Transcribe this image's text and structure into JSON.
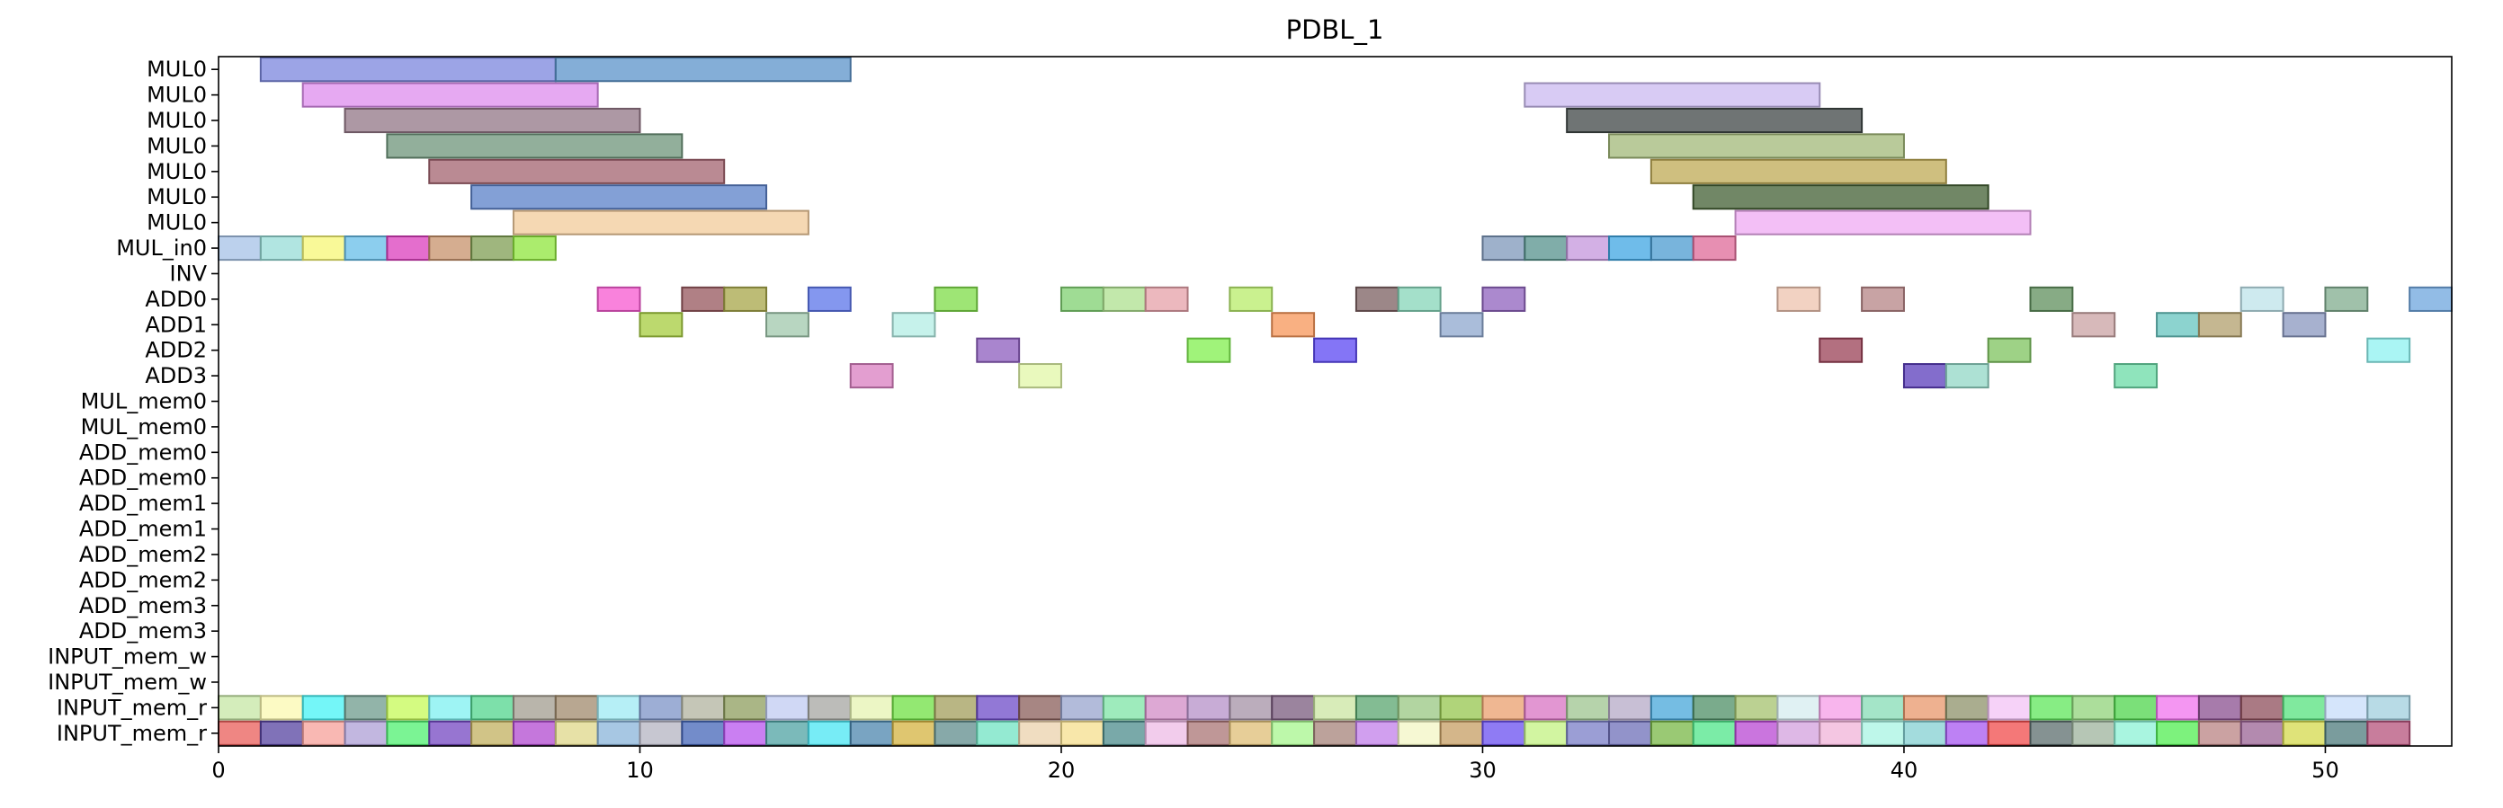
{
  "chart_data": {
    "type": "gantt",
    "title": "PDBL_1",
    "xlabel": "",
    "ylabel": "",
    "xlim": [
      0,
      53
    ],
    "xticks": [
      0,
      10,
      20,
      30,
      40,
      50
    ],
    "grid": false,
    "rows": [
      "MUL0",
      "MUL0",
      "MUL0",
      "MUL0",
      "MUL0",
      "MUL0",
      "MUL0",
      "MUL_in0",
      "INV",
      "ADD0",
      "ADD1",
      "ADD2",
      "ADD3",
      "MUL_mem0",
      "MUL_mem0",
      "ADD_mem0",
      "ADD_mem0",
      "ADD_mem1",
      "ADD_mem1",
      "ADD_mem2",
      "ADD_mem2",
      "ADD_mem3",
      "ADD_mem3",
      "INPUT_mem_w",
      "INPUT_mem_w",
      "INPUT_mem_r",
      "INPUT_mem_r"
    ],
    "tasks": [
      {
        "row": 0,
        "start": 1,
        "end": 8,
        "color": "#7b86dd"
      },
      {
        "row": 0,
        "start": 8,
        "end": 15,
        "color": "#5b93c9"
      },
      {
        "row": 1,
        "start": 2,
        "end": 9,
        "color": "#dd8cee"
      },
      {
        "row": 1,
        "start": 31,
        "end": 38,
        "color": "#cbbaf0"
      },
      {
        "row": 2,
        "start": 3,
        "end": 10,
        "color": "#927585"
      },
      {
        "row": 2,
        "start": 32,
        "end": 39,
        "color": "#3f4645"
      },
      {
        "row": 3,
        "start": 4,
        "end": 11,
        "color": "#6d9479"
      },
      {
        "row": 3,
        "start": 33,
        "end": 40,
        "color": "#a2b878"
      },
      {
        "row": 4,
        "start": 5,
        "end": 12,
        "color": "#a3636f"
      },
      {
        "row": 4,
        "start": 34,
        "end": 41,
        "color": "#bfa954"
      },
      {
        "row": 5,
        "start": 6,
        "end": 13,
        "color": "#5a80c8"
      },
      {
        "row": 5,
        "start": 35,
        "end": 42,
        "color": "#425f33"
      },
      {
        "row": 6,
        "start": 7,
        "end": 14,
        "color": "#f1cb9a"
      },
      {
        "row": 6,
        "start": 36,
        "end": 43,
        "color": "#efaaf3"
      },
      {
        "row": 7,
        "start": 0,
        "end": 1,
        "color": "#a5c2e7"
      },
      {
        "row": 7,
        "start": 1,
        "end": 2,
        "color": "#97dcd7"
      },
      {
        "row": 7,
        "start": 2,
        "end": 3,
        "color": "#f7f775"
      },
      {
        "row": 7,
        "start": 3,
        "end": 4,
        "color": "#66bde8"
      },
      {
        "row": 7,
        "start": 4,
        "end": 5,
        "color": "#db3dbc"
      },
      {
        "row": 7,
        "start": 5,
        "end": 6,
        "color": "#c7916b"
      },
      {
        "row": 7,
        "start": 6,
        "end": 7,
        "color": "#7f9e53"
      },
      {
        "row": 7,
        "start": 7,
        "end": 8,
        "color": "#8fe53c"
      },
      {
        "row": 7,
        "start": 30,
        "end": 31,
        "color": "#7d97b9"
      },
      {
        "row": 7,
        "start": 31,
        "end": 32,
        "color": "#56928c"
      },
      {
        "row": 7,
        "start": 32,
        "end": 33,
        "color": "#c496dc"
      },
      {
        "row": 7,
        "start": 33,
        "end": 34,
        "color": "#3fa6e3"
      },
      {
        "row": 7,
        "start": 34,
        "end": 35,
        "color": "#4b9bd0"
      },
      {
        "row": 7,
        "start": 35,
        "end": 36,
        "color": "#df6a98"
      },
      {
        "row": 9,
        "start": 9,
        "end": 10,
        "color": "#f758d0"
      },
      {
        "row": 9,
        "start": 11,
        "end": 12,
        "color": "#95565c"
      },
      {
        "row": 9,
        "start": 12,
        "end": 13,
        "color": "#a7a648"
      },
      {
        "row": 9,
        "start": 14,
        "end": 15,
        "color": "#5b74ea"
      },
      {
        "row": 9,
        "start": 17,
        "end": 18,
        "color": "#7ddc47"
      },
      {
        "row": 9,
        "start": 20,
        "end": 21,
        "color": "#7fd070"
      },
      {
        "row": 9,
        "start": 21,
        "end": 22,
        "color": "#ade08f"
      },
      {
        "row": 9,
        "start": 22,
        "end": 23,
        "color": "#e5a0a8"
      },
      {
        "row": 9,
        "start": 24,
        "end": 25,
        "color": "#b8ec6a"
      },
      {
        "row": 9,
        "start": 27,
        "end": 28,
        "color": "#7b5f60"
      },
      {
        "row": 9,
        "start": 28,
        "end": 29,
        "color": "#85d5b8"
      },
      {
        "row": 9,
        "start": 30,
        "end": 31,
        "color": "#8f61bd"
      },
      {
        "row": 9,
        "start": 37,
        "end": 38,
        "color": "#edc3ae"
      },
      {
        "row": 9,
        "start": 39,
        "end": 40,
        "color": "#b68485"
      },
      {
        "row": 9,
        "start": 43,
        "end": 44,
        "color": "#5f8f5c"
      },
      {
        "row": 9,
        "start": 48,
        "end": 49,
        "color": "#bde3ea"
      },
      {
        "row": 9,
        "start": 50,
        "end": 51,
        "color": "#80ac8e"
      },
      {
        "row": 9,
        "start": 52,
        "end": 53,
        "color": "#6ea5de"
      },
      {
        "row": 10,
        "start": 10,
        "end": 11,
        "color": "#a5cc3e"
      },
      {
        "row": 10,
        "start": 13,
        "end": 14,
        "color": "#a0c8ac"
      },
      {
        "row": 10,
        "start": 16,
        "end": 17,
        "color": "#b3ede4"
      },
      {
        "row": 10,
        "start": 25,
        "end": 26,
        "color": "#f79558"
      },
      {
        "row": 10,
        "start": 29,
        "end": 30,
        "color": "#8ea7cd"
      },
      {
        "row": 10,
        "start": 44,
        "end": 45,
        "color": "#c9a2a3"
      },
      {
        "row": 10,
        "start": 46,
        "end": 47,
        "color": "#66c4bf"
      },
      {
        "row": 10,
        "start": 47,
        "end": 48,
        "color": "#b19f6c"
      },
      {
        "row": 10,
        "start": 49,
        "end": 50,
        "color": "#8997bf"
      },
      {
        "row": 11,
        "start": 18,
        "end": 19,
        "color": "#8c5cbd"
      },
      {
        "row": 11,
        "start": 23,
        "end": 24,
        "color": "#80ef4e"
      },
      {
        "row": 11,
        "start": 26,
        "end": 27,
        "color": "#5b47f3"
      },
      {
        "row": 11,
        "start": 38,
        "end": 39,
        "color": "#9a4055"
      },
      {
        "row": 11,
        "start": 42,
        "end": 43,
        "color": "#7dc35e"
      },
      {
        "row": 11,
        "start": 51,
        "end": 52,
        "color": "#8df2f0"
      },
      {
        "row": 12,
        "start": 15,
        "end": 16,
        "color": "#d97ec0"
      },
      {
        "row": 12,
        "start": 19,
        "end": 20,
        "color": "#e1f7a7"
      },
      {
        "row": 12,
        "start": 40,
        "end": 41,
        "color": "#5a3cbb"
      },
      {
        "row": 12,
        "start": 41,
        "end": 42,
        "color": "#91d7c6"
      },
      {
        "row": 12,
        "start": 45,
        "end": 46,
        "color": "#6adba6"
      },
      {
        "row": 25,
        "start": 0,
        "end": 1,
        "color": "#c5e7a4"
      },
      {
        "row": 25,
        "start": 1,
        "end": 2,
        "color": "#fbf8b0"
      },
      {
        "row": 25,
        "start": 2,
        "end": 3,
        "color": "#45f3f5"
      },
      {
        "row": 25,
        "start": 3,
        "end": 4,
        "color": "#6e9b8c"
      },
      {
        "row": 25,
        "start": 4,
        "end": 5,
        "color": "#c5fa57"
      },
      {
        "row": 25,
        "start": 5,
        "end": 6,
        "color": "#7df0f0"
      },
      {
        "row": 25,
        "start": 6,
        "end": 7,
        "color": "#52d58d"
      },
      {
        "row": 25,
        "start": 7,
        "end": 8,
        "color": "#a29c8f"
      },
      {
        "row": 25,
        "start": 8,
        "end": 9,
        "color": "#a08a6c"
      },
      {
        "row": 25,
        "start": 9,
        "end": 10,
        "color": "#9ee9f3"
      },
      {
        "row": 25,
        "start": 10,
        "end": 11,
        "color": "#7c93c7"
      },
      {
        "row": 25,
        "start": 11,
        "end": 12,
        "color": "#b1b39f"
      },
      {
        "row": 25,
        "start": 12,
        "end": 13,
        "color": "#8e9d5d"
      },
      {
        "row": 25,
        "start": 13,
        "end": 14,
        "color": "#c0cbf1"
      },
      {
        "row": 25,
        "start": 14,
        "end": 15,
        "color": "#a5a6a1"
      },
      {
        "row": 25,
        "start": 15,
        "end": 16,
        "color": "#e5f3b2"
      },
      {
        "row": 25,
        "start": 16,
        "end": 17,
        "color": "#6fe043"
      },
      {
        "row": 25,
        "start": 17,
        "end": 18,
        "color": "#a19d5b"
      },
      {
        "row": 25,
        "start": 18,
        "end": 19,
        "color": "#6d4bc8"
      },
      {
        "row": 25,
        "start": 19,
        "end": 20,
        "color": "#895e5a"
      },
      {
        "row": 25,
        "start": 20,
        "end": 21,
        "color": "#98a4ce"
      },
      {
        "row": 25,
        "start": 21,
        "end": 22,
        "color": "#7ee4a6"
      },
      {
        "row": 25,
        "start": 22,
        "end": 23,
        "color": "#d18bc5"
      },
      {
        "row": 25,
        "start": 23,
        "end": 24,
        "color": "#b590c8"
      },
      {
        "row": 25,
        "start": 24,
        "end": 25,
        "color": "#a491a5"
      },
      {
        "row": 25,
        "start": 25,
        "end": 26,
        "color": "#7a5b7d"
      },
      {
        "row": 25,
        "start": 26,
        "end": 27,
        "color": "#cbe6a1"
      },
      {
        "row": 25,
        "start": 27,
        "end": 28,
        "color": "#5aa66f"
      },
      {
        "row": 25,
        "start": 28,
        "end": 29,
        "color": "#98c782"
      },
      {
        "row": 25,
        "start": 29,
        "end": 30,
        "color": "#96c64e"
      },
      {
        "row": 25,
        "start": 30,
        "end": 31,
        "color": "#e99f6e"
      },
      {
        "row": 25,
        "start": 31,
        "end": 32,
        "color": "#d873c3"
      },
      {
        "row": 25,
        "start": 32,
        "end": 33,
        "color": "#9dc48f"
      },
      {
        "row": 25,
        "start": 33,
        "end": 34,
        "color": "#b5a9c7"
      },
      {
        "row": 25,
        "start": 34,
        "end": 35,
        "color": "#47a7d9"
      },
      {
        "row": 25,
        "start": 35,
        "end": 36,
        "color": "#4e8f66"
      },
      {
        "row": 25,
        "start": 36,
        "end": 37,
        "color": "#a4c26e"
      },
      {
        "row": 25,
        "start": 37,
        "end": 38,
        "color": "#d6ecef"
      },
      {
        "row": 25,
        "start": 38,
        "end": 39,
        "color": "#f59ce7"
      },
      {
        "row": 25,
        "start": 39,
        "end": 40,
        "color": "#86dcb5"
      },
      {
        "row": 25,
        "start": 40,
        "end": 41,
        "color": "#e8976b"
      },
      {
        "row": 25,
        "start": 41,
        "end": 42,
        "color": "#8d9269"
      },
      {
        "row": 25,
        "start": 42,
        "end": 43,
        "color": "#f3c3f6"
      },
      {
        "row": 25,
        "start": 43,
        "end": 44,
        "color": "#5fe75b"
      },
      {
        "row": 25,
        "start": 44,
        "end": 45,
        "color": "#90d37a"
      },
      {
        "row": 25,
        "start": 45,
        "end": 46,
        "color": "#4fd54c"
      },
      {
        "row": 25,
        "start": 46,
        "end": 47,
        "color": "#f073ee"
      },
      {
        "row": 25,
        "start": 47,
        "end": 48,
        "color": "#8a4f8f"
      },
      {
        "row": 25,
        "start": 48,
        "end": 49,
        "color": "#8e4d5b"
      },
      {
        "row": 25,
        "start": 49,
        "end": 50,
        "color": "#55e27d"
      },
      {
        "row": 25,
        "start": 50,
        "end": 51,
        "color": "#c7dcfa"
      },
      {
        "row": 25,
        "start": 51,
        "end": 52,
        "color": "#a0cfde"
      },
      {
        "row": 26,
        "start": 0,
        "end": 1,
        "color": "#ea5d5a"
      },
      {
        "row": 26,
        "start": 1,
        "end": 2,
        "color": "#5643a0"
      },
      {
        "row": 26,
        "start": 2,
        "end": 3,
        "color": "#f7a099"
      },
      {
        "row": 26,
        "start": 3,
        "end": 4,
        "color": "#ae9fd6"
      },
      {
        "row": 26,
        "start": 4,
        "end": 5,
        "color": "#4ff070"
      },
      {
        "row": 26,
        "start": 5,
        "end": 6,
        "color": "#7447c2"
      },
      {
        "row": 26,
        "start": 6,
        "end": 7,
        "color": "#c2b05f"
      },
      {
        "row": 26,
        "start": 7,
        "end": 8,
        "color": "#b14ad0"
      },
      {
        "row": 26,
        "start": 8,
        "end": 9,
        "color": "#dfd78a"
      },
      {
        "row": 26,
        "start": 9,
        "end": 10,
        "color": "#89b4da"
      },
      {
        "row": 26,
        "start": 10,
        "end": 11,
        "color": "#b4b4c2"
      },
      {
        "row": 26,
        "start": 11,
        "end": 12,
        "color": "#4465b8"
      },
      {
        "row": 26,
        "start": 12,
        "end": 13,
        "color": "#b854ee"
      },
      {
        "row": 26,
        "start": 13,
        "end": 14,
        "color": "#4fa3a3"
      },
      {
        "row": 26,
        "start": 14,
        "end": 15,
        "color": "#4ae5f3"
      },
      {
        "row": 26,
        "start": 15,
        "end": 16,
        "color": "#4c85ad"
      },
      {
        "row": 26,
        "start": 16,
        "end": 17,
        "color": "#d4b340"
      },
      {
        "row": 26,
        "start": 17,
        "end": 18,
        "color": "#5f8c8c"
      },
      {
        "row": 26,
        "start": 18,
        "end": 19,
        "color": "#70e3c3"
      },
      {
        "row": 26,
        "start": 19,
        "end": 20,
        "color": "#ebd2ac"
      },
      {
        "row": 26,
        "start": 20,
        "end": 21,
        "color": "#f5df8e"
      },
      {
        "row": 26,
        "start": 21,
        "end": 22,
        "color": "#4c8c8c"
      },
      {
        "row": 26,
        "start": 22,
        "end": 23,
        "color": "#eebbe6"
      },
      {
        "row": 26,
        "start": 23,
        "end": 24,
        "color": "#aa7474"
      },
      {
        "row": 26,
        "start": 24,
        "end": 25,
        "color": "#dfbe76"
      },
      {
        "row": 26,
        "start": 25,
        "end": 26,
        "color": "#a7f58d"
      },
      {
        "row": 26,
        "start": 26,
        "end": 27,
        "color": "#a5837a"
      },
      {
        "row": 26,
        "start": 27,
        "end": 28,
        "color": "#c17fea"
      },
      {
        "row": 26,
        "start": 28,
        "end": 29,
        "color": "#f3f6c4"
      },
      {
        "row": 26,
        "start": 29,
        "end": 30,
        "color": "#c69d63"
      },
      {
        "row": 26,
        "start": 30,
        "end": 31,
        "color": "#6a4ff0"
      },
      {
        "row": 26,
        "start": 31,
        "end": 32,
        "color": "#c3f281"
      },
      {
        "row": 26,
        "start": 32,
        "end": 33,
        "color": "#7a7ec7"
      },
      {
        "row": 26,
        "start": 33,
        "end": 34,
        "color": "#6e6fb8"
      },
      {
        "row": 26,
        "start": 34,
        "end": 35,
        "color": "#78b745"
      },
      {
        "row": 26,
        "start": 35,
        "end": 36,
        "color": "#4fe68a"
      },
      {
        "row": 26,
        "start": 36,
        "end": 37,
        "color": "#b847d3"
      },
      {
        "row": 26,
        "start": 37,
        "end": 38,
        "color": "#d3a0de"
      },
      {
        "row": 26,
        "start": 38,
        "end": 39,
        "color": "#f0b3d8"
      },
      {
        "row": 26,
        "start": 39,
        "end": 40,
        "color": "#a8f4e3"
      },
      {
        "row": 26,
        "start": 40,
        "end": 41,
        "color": "#84d0d2"
      },
      {
        "row": 26,
        "start": 41,
        "end": 42,
        "color": "#a757f0"
      },
      {
        "row": 26,
        "start": 42,
        "end": 43,
        "color": "#f04b4b"
      },
      {
        "row": 26,
        "start": 43,
        "end": 44,
        "color": "#5c6d6d"
      },
      {
        "row": 26,
        "start": 44,
        "end": 45,
        "color": "#9db39c"
      },
      {
        "row": 26,
        "start": 45,
        "end": 46,
        "color": "#8cf1d6"
      },
      {
        "row": 26,
        "start": 46,
        "end": 47,
        "color": "#52ee52"
      },
      {
        "row": 26,
        "start": 47,
        "end": 48,
        "color": "#b98383"
      },
      {
        "row": 26,
        "start": 48,
        "end": 49,
        "color": "#9a6394"
      },
      {
        "row": 26,
        "start": 49,
        "end": 50,
        "color": "#d4d94c"
      },
      {
        "row": 26,
        "start": 50,
        "end": 51,
        "color": "#4d7b7c"
      },
      {
        "row": 26,
        "start": 51,
        "end": 52,
        "color": "#b5517b"
      }
    ]
  }
}
